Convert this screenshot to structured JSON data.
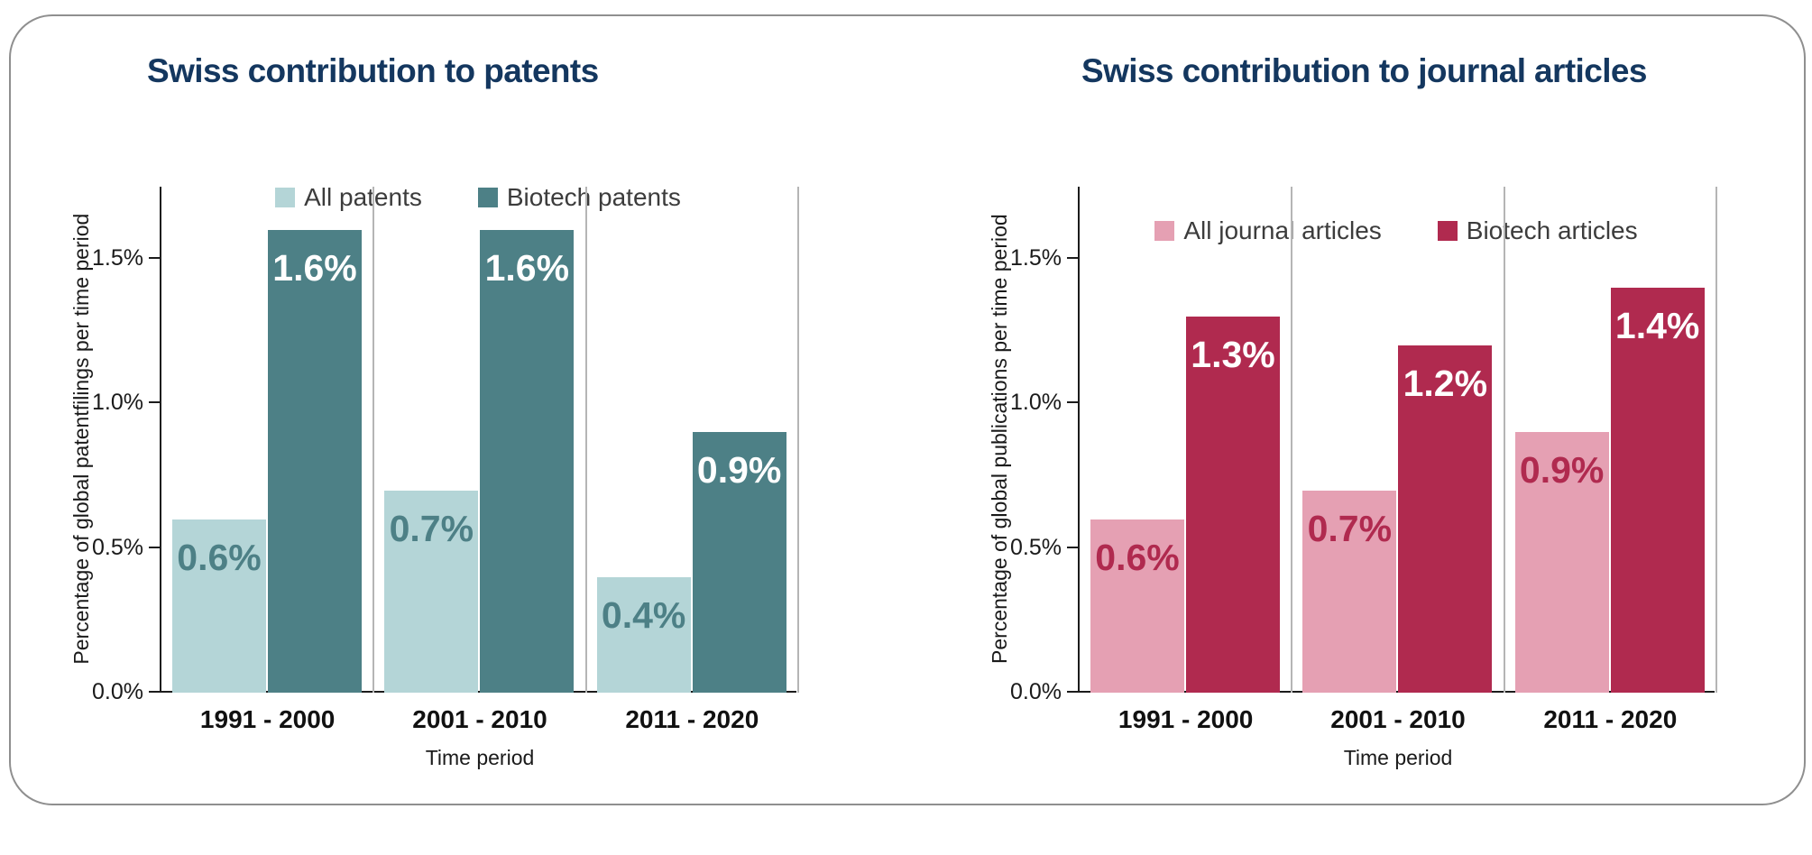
{
  "card": {
    "background": "#ffffff",
    "border_color": "#8f8f8f"
  },
  "chart_data": [
    {
      "type": "bar",
      "title": "Swiss contribution to patents",
      "title_color": "#14375f",
      "xlabel": "Time period",
      "ylabel": "Percentage of global patentfilings per time period",
      "categories": [
        "1991 - 2000",
        "2001 - 2010",
        "2011 - 2020"
      ],
      "series": [
        {
          "name": "All patents",
          "values": [
            0.6,
            0.7,
            0.4
          ],
          "labels": [
            "0.6%",
            "0.7%",
            "0.4%"
          ],
          "color": "#b4d5d7",
          "label_color": "#4d8086"
        },
        {
          "name": "Biotech patents",
          "values": [
            1.6,
            1.6,
            0.9
          ],
          "labels": [
            "1.6%",
            "1.6%",
            "0.9%"
          ],
          "color": "#4d8086",
          "label_color": "#ffffff"
        }
      ],
      "yticks": [
        "0.0%",
        "0.5%",
        "1.0%",
        "1.5%"
      ],
      "ylim": [
        0,
        1.75
      ],
      "legend_position": "top",
      "grid": "vertical-group-separators",
      "separator_color": "#b5b5b5",
      "axis_color": "#1c1c1c"
    },
    {
      "type": "bar",
      "title": "Swiss contribution to journal articles",
      "title_color": "#14375f",
      "xlabel": "Time period",
      "ylabel": "Percentage of global publications per time period",
      "categories": [
        "1991 - 2000",
        "2001 - 2010",
        "2011 - 2020"
      ],
      "series": [
        {
          "name": "All journal articles",
          "values": [
            0.6,
            0.7,
            0.9
          ],
          "labels": [
            "0.6%",
            "0.7%",
            "0.9%"
          ],
          "color": "#e5a0b3",
          "label_color": "#b02a4f"
        },
        {
          "name": "Biotech articles",
          "values": [
            1.3,
            1.2,
            1.4
          ],
          "labels": [
            "1.3%",
            "1.2%",
            "1.4%"
          ],
          "color": "#b02a4f",
          "label_color": "#ffffff"
        }
      ],
      "yticks": [
        "0.0%",
        "0.5%",
        "1.0%",
        "1.5%"
      ],
      "ylim": [
        0,
        1.75
      ],
      "legend_position": "top",
      "grid": "vertical-group-separators",
      "separator_color": "#b5b5b5",
      "axis_color": "#1c1c1c"
    }
  ]
}
